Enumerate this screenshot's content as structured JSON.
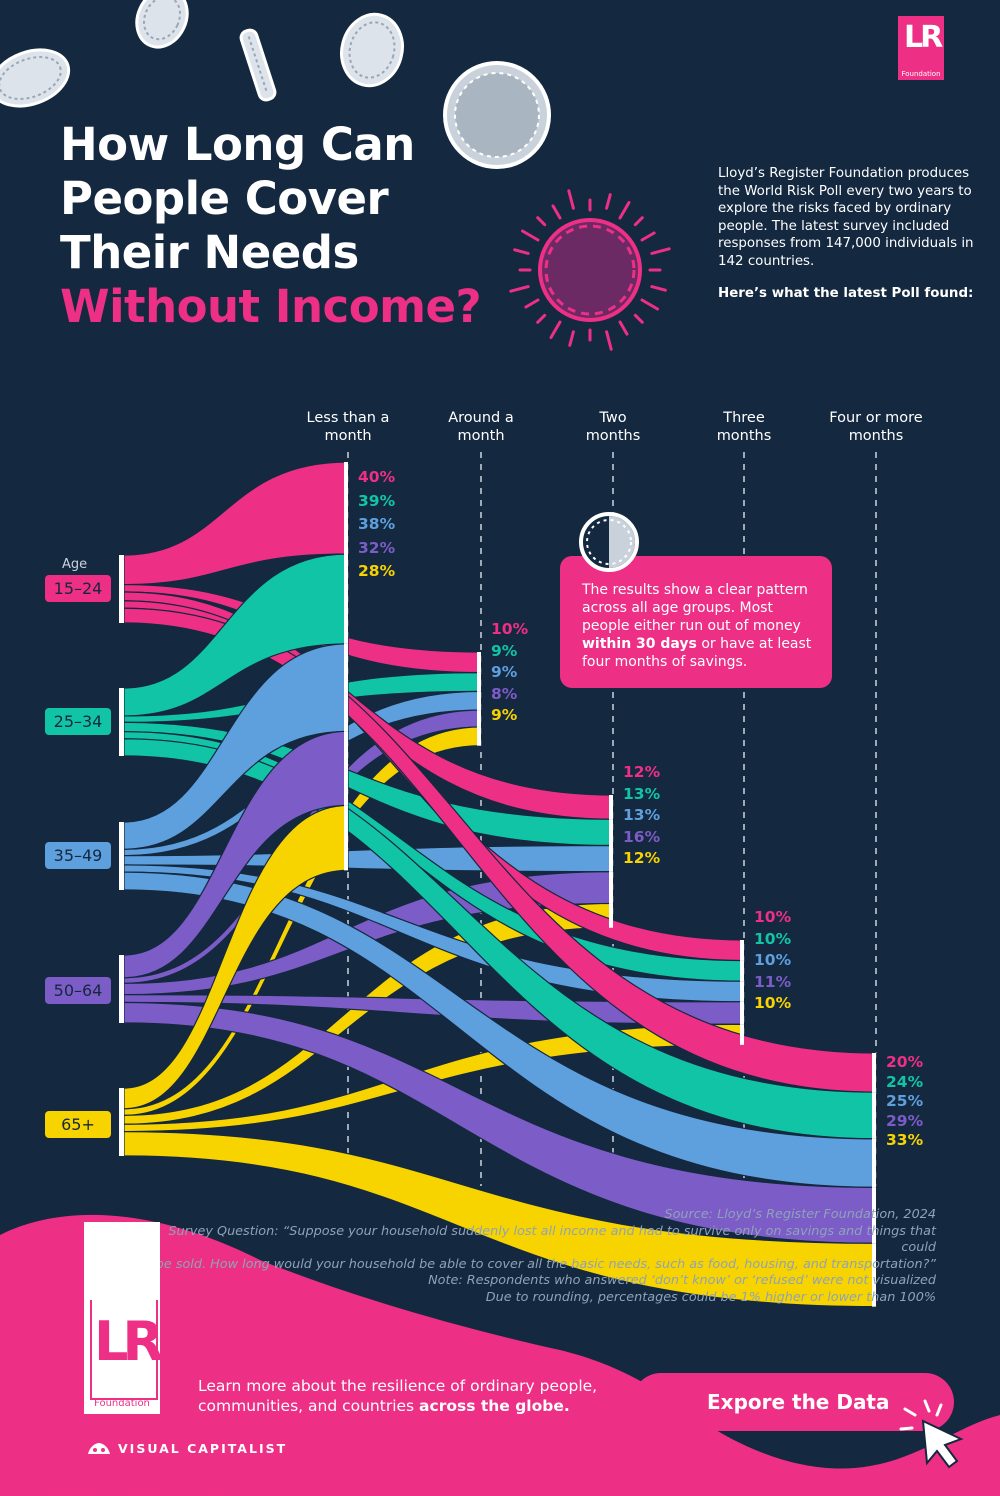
{
  "title": {
    "line1": "How Long Can",
    "line2": "People Cover",
    "line3": "Their Needs",
    "line4": "Without Income?"
  },
  "intro": {
    "text": "Lloyd’s Register Foundation produces the World Risk Poll every two years to explore the risks faced by ordinary people. The latest survey included responses from 147,000 individuals in 142 countries.",
    "lead": "Here’s what the latest Poll found:"
  },
  "brand": {
    "logo_text": "LR",
    "logo_sub": "Foundation",
    "publisher": "VISUAL CAPITALIST"
  },
  "callout": {
    "text_before": "The results show a clear pattern across all age groups. Most people either run out of money ",
    "text_bold": "within 30 days",
    "text_after": " or have at least four months of savings."
  },
  "chart_data": {
    "type": "sankey",
    "age_label": "Age",
    "categories": [
      "Less than a month",
      "Around a month",
      "Two months",
      "Three months",
      "Four or more months"
    ],
    "category_labels": [
      [
        "Less than a",
        "month"
      ],
      [
        "Around a",
        "month"
      ],
      [
        "Two",
        "months"
      ],
      [
        "Three",
        "months"
      ],
      [
        "Four or more",
        "months"
      ]
    ],
    "series": [
      {
        "name": "15-24",
        "label": "15–24",
        "color": "#ee2f86",
        "values": [
          40,
          10,
          12,
          10,
          20
        ]
      },
      {
        "name": "25-34",
        "label": "25–34",
        "color": "#12c4a6",
        "values": [
          39,
          9,
          13,
          10,
          24
        ]
      },
      {
        "name": "35-49",
        "label": "35–49",
        "color": "#5e9fdd",
        "values": [
          38,
          9,
          13,
          10,
          25
        ]
      },
      {
        "name": "50-64",
        "label": "50–64",
        "color": "#7c5cc7",
        "values": [
          32,
          8,
          16,
          11,
          29
        ]
      },
      {
        "name": "65+",
        "label": "65+",
        "color": "#f7d300",
        "values": [
          28,
          9,
          12,
          10,
          33
        ]
      }
    ],
    "value_suffix": "%"
  },
  "source": {
    "line1": "Source: Lloyd’s Register Foundation, 2024",
    "line2": "Survey Question: “Suppose your household suddenly lost all income and had to survive only on savings and things that could",
    "line3": "be sold. How long would your household be able to cover all the basic needs, such as food, housing, and transportation?”",
    "line4": "Note: Respondents who answered ‘don’t know’ or ‘refused’ were not visualized",
    "line5": "Due to rounding, percentages could be 1% higher or lower than 100%"
  },
  "footer": {
    "learn_before": "Learn more about the resilience of ordinary people, communities, and countries ",
    "learn_bold": "across the globe.",
    "cta_label": "Expore the Data"
  }
}
